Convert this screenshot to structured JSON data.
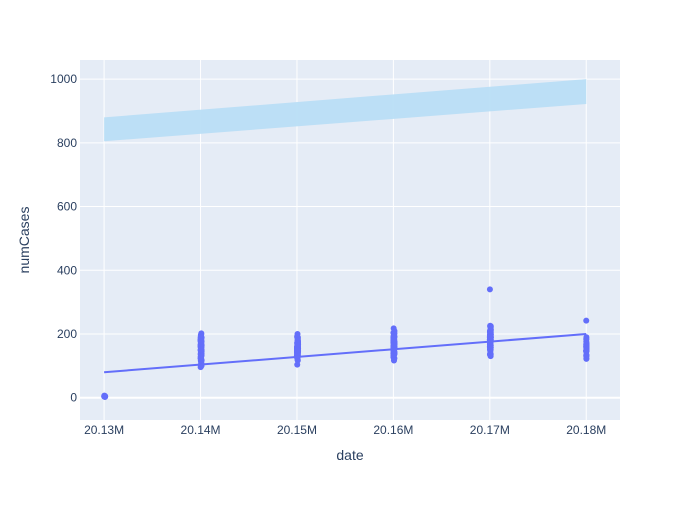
{
  "chart_data": {
    "type": "scatter",
    "title": "",
    "xlabel": "date",
    "ylabel": "numCases",
    "xlim": [
      20127500,
      20183500
    ],
    "ylim": [
      -70,
      1060
    ],
    "x_ticks": [
      {
        "value": 20130000,
        "label": "20.13M"
      },
      {
        "value": 20140000,
        "label": "20.14M"
      },
      {
        "value": 20150000,
        "label": "20.15M"
      },
      {
        "value": 20160000,
        "label": "20.16M"
      },
      {
        "value": 20170000,
        "label": "20.17M"
      },
      {
        "value": 20180000,
        "label": "20.18M"
      }
    ],
    "y_ticks": [
      0,
      200,
      400,
      600,
      800,
      1000
    ],
    "grid": true,
    "colors": {
      "plot_bg": "#e5ecf6",
      "grid": "#ffffff",
      "points": "#636efa",
      "trend": "#636efa",
      "band": "#b9def5",
      "axis_text": "#2a3f5f"
    },
    "series": [
      {
        "kind": "points",
        "clusters": [
          {
            "x_start": 20130000,
            "x_end": 20130120,
            "y_min": 0,
            "y_max": 8,
            "count": 14,
            "outliers": []
          },
          {
            "x_start": 20140000,
            "x_end": 20140115,
            "y_min": 78,
            "y_max": 220,
            "count": 90,
            "outliers": []
          },
          {
            "x_start": 20150000,
            "x_end": 20150115,
            "y_min": 92,
            "y_max": 212,
            "count": 90,
            "outliers": []
          },
          {
            "x_start": 20160000,
            "x_end": 20160115,
            "y_min": 108,
            "y_max": 232,
            "count": 100,
            "outliers": []
          },
          {
            "x_start": 20170000,
            "x_end": 20170105,
            "y_min": 118,
            "y_max": 248,
            "count": 100,
            "outliers": [
              {
                "x": 20170010,
                "y": 340
              }
            ]
          },
          {
            "x_start": 20180000,
            "x_end": 20180020,
            "y_min": 108,
            "y_max": 200,
            "count": 35,
            "outliers": [
              {
                "x": 20180000,
                "y": 242
              }
            ]
          }
        ]
      },
      {
        "kind": "trend-line",
        "x": [
          20130000,
          20180000
        ],
        "y": [
          80,
          200
        ]
      },
      {
        "kind": "band",
        "x": [
          20130000,
          20180000
        ],
        "lower": [
          805,
          922
        ],
        "upper": [
          880,
          1000
        ]
      }
    ]
  }
}
